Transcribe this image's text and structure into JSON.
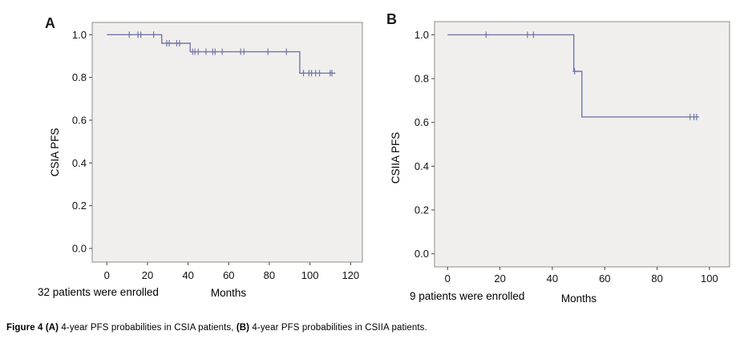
{
  "figure": {
    "caption_parts": [
      {
        "text": "Figure 4 (A) ",
        "bold": true
      },
      {
        "text": "4-year PFS probabilities in CSIA patients, ",
        "bold": false
      },
      {
        "text": "(B)",
        "bold": true
      },
      {
        "text": " 4-year PFS probabilities in CSIIA patients.",
        "bold": false
      }
    ]
  },
  "colors": {
    "curve": "#7178a9",
    "plot_bg": "#f0efed",
    "frame_border": "#8c8c8c",
    "tick": "#444444",
    "text": "#000000"
  },
  "chart_data": [
    {
      "type": "line",
      "subtype": "kaplan_meier_step",
      "panel_label": "A",
      "ylabel": "CSIA PFS",
      "xlabel": "Months",
      "footnote": "32 patients were enrolled",
      "x_ticks": [
        0,
        20,
        40,
        60,
        80,
        100,
        120
      ],
      "y_ticks": [
        1.0,
        0.8,
        0.6,
        0.4,
        0.2,
        0.0
      ],
      "xlim": [
        -7,
        126
      ],
      "ylim": [
        -0.06,
        1.06
      ],
      "grid": false,
      "legend": "none",
      "steps": [
        {
          "from": 0,
          "to": 27,
          "survival": 1.0
        },
        {
          "from": 27,
          "to": 41,
          "survival": 0.96
        },
        {
          "from": 41,
          "to": 95,
          "survival": 0.92
        },
        {
          "from": 95,
          "to": 112.5,
          "survival": 0.82
        }
      ],
      "censor_marks": [
        {
          "month": 11,
          "survival": 1.0
        },
        {
          "month": 15.3,
          "survival": 1.0
        },
        {
          "month": 16.7,
          "survival": 1.0
        },
        {
          "month": 23,
          "survival": 1.0
        },
        {
          "month": 29.5,
          "survival": 0.96
        },
        {
          "month": 30.7,
          "survival": 0.96
        },
        {
          "month": 34.4,
          "survival": 0.96
        },
        {
          "month": 35.8,
          "survival": 0.96
        },
        {
          "month": 42.2,
          "survival": 0.92
        },
        {
          "month": 43.4,
          "survival": 0.92
        },
        {
          "month": 45,
          "survival": 0.92
        },
        {
          "month": 48.8,
          "survival": 0.92
        },
        {
          "month": 52.1,
          "survival": 0.92
        },
        {
          "month": 53.3,
          "survival": 0.92
        },
        {
          "month": 56.8,
          "survival": 0.92
        },
        {
          "month": 65.9,
          "survival": 0.92
        },
        {
          "month": 67.5,
          "survival": 0.92
        },
        {
          "month": 79.3,
          "survival": 0.92
        },
        {
          "month": 88.4,
          "survival": 0.92
        },
        {
          "month": 96.8,
          "survival": 0.82
        },
        {
          "month": 99.5,
          "survival": 0.82
        },
        {
          "month": 100.8,
          "survival": 0.82
        },
        {
          "month": 102.8,
          "survival": 0.82
        },
        {
          "month": 104.7,
          "survival": 0.82
        },
        {
          "month": 110,
          "survival": 0.82
        },
        {
          "month": 110.8,
          "survival": 0.82
        }
      ]
    },
    {
      "type": "line",
      "subtype": "kaplan_meier_step",
      "panel_label": "B",
      "ylabel": "CSIIA PFS",
      "xlabel": "Months",
      "footnote": "9 patients were enrolled",
      "x_ticks": [
        0,
        20,
        40,
        60,
        80,
        100
      ],
      "y_ticks": [
        1.0,
        0.8,
        0.6,
        0.4,
        0.2,
        0.0
      ],
      "xlim": [
        -5,
        108
      ],
      "ylim": [
        -0.06,
        1.06
      ],
      "grid": false,
      "legend": "none",
      "steps": [
        {
          "from": 0,
          "to": 48.2,
          "survival": 1.0
        },
        {
          "from": 48.2,
          "to": 51.3,
          "survival": 0.833
        },
        {
          "from": 51.3,
          "to": 96,
          "survival": 0.625
        }
      ],
      "censor_marks": [
        {
          "month": 14.7,
          "survival": 1.0
        },
        {
          "month": 30.5,
          "survival": 1.0
        },
        {
          "month": 32.8,
          "survival": 1.0
        },
        {
          "month": 48.5,
          "survival": 0.833
        },
        {
          "month": 92.6,
          "survival": 0.625
        },
        {
          "month": 94.1,
          "survival": 0.625
        },
        {
          "month": 95.1,
          "survival": 0.625
        }
      ]
    }
  ]
}
